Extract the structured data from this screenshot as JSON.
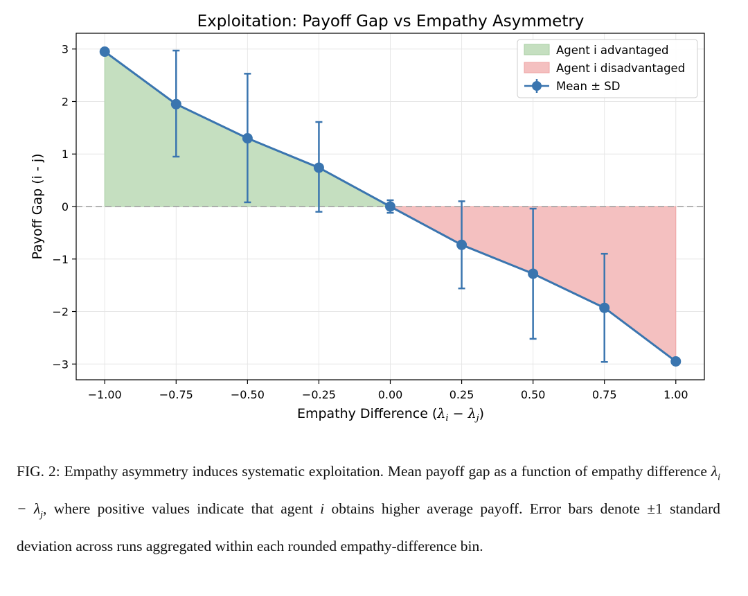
{
  "chart_data": {
    "type": "line",
    "title": "Exploitation: Payoff Gap vs Empathy Asymmetry",
    "xlabel_prefix": "Empathy Difference (",
    "xlabel_math": "λi − λj",
    "xlabel_suffix": ")",
    "ylabel": "Payoff Gap (i - j)",
    "xlim": [
      -1.1,
      1.1
    ],
    "ylim": [
      -3.3,
      3.3
    ],
    "x_ticks": [
      -1.0,
      -0.75,
      -0.5,
      -0.25,
      0.0,
      0.25,
      0.5,
      0.75,
      1.0
    ],
    "x_tick_labels": [
      "−1.00",
      "−0.75",
      "−0.50",
      "−0.25",
      "0.00",
      "0.25",
      "0.50",
      "0.75",
      "1.00"
    ],
    "y_ticks": [
      3,
      2,
      1,
      0,
      -1,
      -2,
      -3
    ],
    "y_tick_labels": [
      "3",
      "2",
      "1",
      "0",
      "−1",
      "−2",
      "−3"
    ],
    "grid": true,
    "zero_line": "dashed",
    "legend_position": "top-right",
    "series": [
      {
        "name": "Mean ± SD",
        "x": [
          -1.0,
          -0.75,
          -0.5,
          -0.25,
          0.0,
          0.25,
          0.5,
          0.75,
          1.0
        ],
        "y": [
          2.95,
          1.95,
          1.3,
          0.74,
          0.0,
          -0.73,
          -1.28,
          -1.93,
          -2.95
        ],
        "err_low": [
          2.95,
          0.95,
          0.08,
          -0.1,
          -0.12,
          -1.56,
          -2.52,
          -2.96,
          -2.95
        ],
        "err_high": [
          2.95,
          2.97,
          2.53,
          1.61,
          0.12,
          0.1,
          -0.04,
          -0.9,
          -2.95
        ],
        "color": "#3a75af"
      }
    ],
    "fills": [
      {
        "name": "Agent i advantaged",
        "color": "#c5dfc0",
        "edge": "#a9cfa3"
      },
      {
        "name": "Agent i disadvantaged",
        "color": "#f4c0c0",
        "edge": "#eea3a3"
      }
    ]
  },
  "caption": {
    "label": "FIG. 2:",
    "text": "Empathy asymmetry induces systematic exploitation. Mean payoff gap as a function of empathy difference λi − λj, where positive values indicate that agent i obtains higher average payoff. Error bars denote ±1 standard deviation across runs aggregated within each rounded empathy-difference bin.",
    "part1": "Empathy asymmetry induces systematic exploitation. Mean payoff gap as a function of empathy difference ",
    "math1": "λi − λj",
    "part2": ", where positive values indicate that agent ",
    "math2": "i",
    "part3": " obtains higher average payoff. Error bars denote ±1 standard deviation across runs aggregated within each rounded empathy-difference bin."
  }
}
